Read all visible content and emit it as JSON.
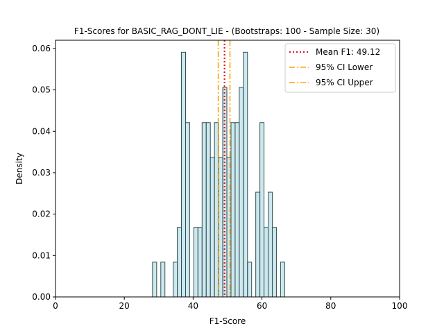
{
  "chart_data": {
    "type": "bar",
    "title": "F1-Scores for BASIC_RAG_DONT_LIE - (Bootstraps: 100 - Sample Size: 30)",
    "xlabel": "F1-Score",
    "ylabel": "Density",
    "xlim": [
      0,
      100
    ],
    "ylim": [
      0,
      0.062
    ],
    "xticks": [
      0,
      20,
      40,
      60,
      80,
      100
    ],
    "xtick_labels": [
      "0",
      "20",
      "40",
      "60",
      "80",
      "100"
    ],
    "yticks": [
      0,
      0.01,
      0.02,
      0.03,
      0.04,
      0.05,
      0.06
    ],
    "ytick_labels": [
      "0.00",
      "0.01",
      "0.02",
      "0.03",
      "0.04",
      "0.05",
      "0.06"
    ],
    "bin_width": 1.19,
    "bins": [
      {
        "x0": 28.2,
        "x1": 29.4,
        "density": 0.0084
      },
      {
        "x0": 30.6,
        "x1": 31.8,
        "density": 0.0084
      },
      {
        "x0": 34.2,
        "x1": 35.4,
        "density": 0.0084
      },
      {
        "x0": 35.4,
        "x1": 36.6,
        "density": 0.0168
      },
      {
        "x0": 36.6,
        "x1": 37.8,
        "density": 0.0591
      },
      {
        "x0": 37.8,
        "x1": 39.0,
        "density": 0.0421
      },
      {
        "x0": 40.2,
        "x1": 41.4,
        "density": 0.0168
      },
      {
        "x0": 41.4,
        "x1": 42.6,
        "density": 0.0168
      },
      {
        "x0": 42.6,
        "x1": 43.8,
        "density": 0.0421
      },
      {
        "x0": 43.8,
        "x1": 45.0,
        "density": 0.0421
      },
      {
        "x0": 45.0,
        "x1": 46.2,
        "density": 0.0337
      },
      {
        "x0": 46.2,
        "x1": 47.4,
        "density": 0.0421
      },
      {
        "x0": 47.4,
        "x1": 48.6,
        "density": 0.0337
      },
      {
        "x0": 48.6,
        "x1": 49.8,
        "density": 0.0506
      },
      {
        "x0": 49.8,
        "x1": 51.0,
        "density": 0.0337
      },
      {
        "x0": 51.0,
        "x1": 52.2,
        "density": 0.0421
      },
      {
        "x0": 52.2,
        "x1": 53.4,
        "density": 0.0421
      },
      {
        "x0": 53.4,
        "x1": 54.6,
        "density": 0.0506
      },
      {
        "x0": 54.6,
        "x1": 55.8,
        "density": 0.0591
      },
      {
        "x0": 55.8,
        "x1": 57.0,
        "density": 0.0084
      },
      {
        "x0": 58.2,
        "x1": 59.4,
        "density": 0.0253
      },
      {
        "x0": 59.4,
        "x1": 60.6,
        "density": 0.0421
      },
      {
        "x0": 60.6,
        "x1": 61.8,
        "density": 0.0168
      },
      {
        "x0": 61.8,
        "x1": 63.0,
        "density": 0.0253
      },
      {
        "x0": 63.0,
        "x1": 64.2,
        "density": 0.0168
      },
      {
        "x0": 65.4,
        "x1": 66.6,
        "density": 0.0084
      }
    ],
    "bar_fill": "#add8e6",
    "bar_edge": "#2f4f4f",
    "lines": [
      {
        "name": "Mean F1: 49.12",
        "x": 49.12,
        "color": "#e41a1c",
        "style": "dotted"
      },
      {
        "name": "95% CI Lower",
        "x": 47.3,
        "color": "#ffa500",
        "style": "dashdot"
      },
      {
        "name": "95% CI Upper",
        "x": 50.7,
        "color": "#ffa500",
        "style": "dashdot"
      }
    ],
    "legend": "top-right",
    "grid": false
  }
}
